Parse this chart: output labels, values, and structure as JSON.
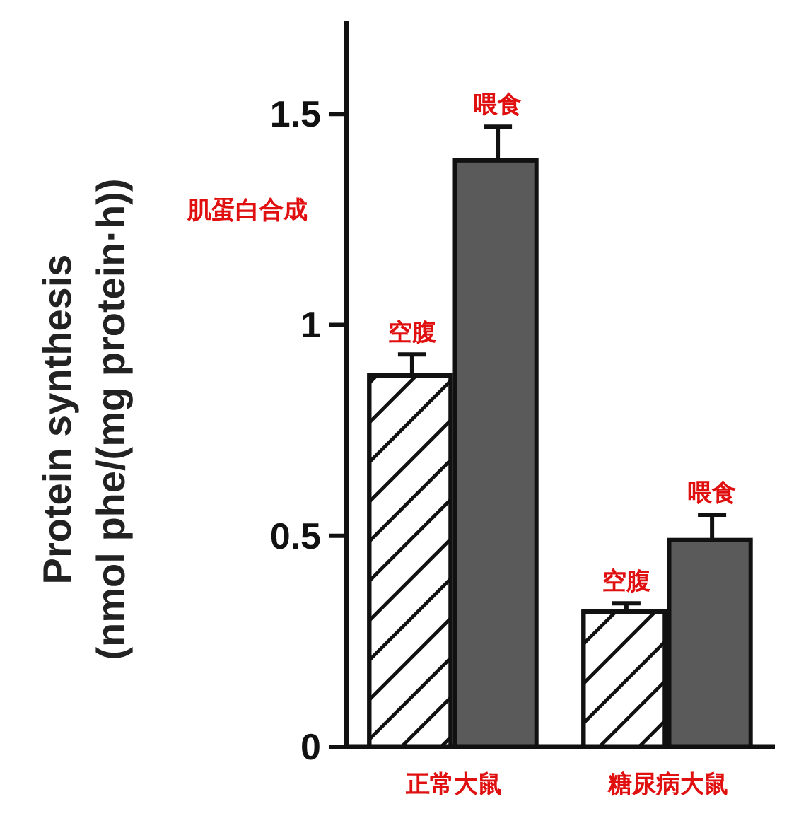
{
  "chart_data": {
    "type": "bar",
    "ylabel": "Protein synthesis\n(nmol phe/(mg protein·h))",
    "categories": [
      "正常大鼠",
      "糖尿病大鼠"
    ],
    "series": [
      {
        "name": "空腹",
        "color": "#ffffff",
        "values": [
          0.88,
          0.32
        ],
        "errors": [
          0.05,
          0.02
        ]
      },
      {
        "name": "喂食",
        "color": "#5a5a5a",
        "values": [
          1.39,
          0.49
        ],
        "errors": [
          0.08,
          0.06
        ]
      }
    ],
    "ylim": [
      0,
      1.72
    ],
    "yticks": [
      0,
      {
        "value": 0.5,
        "label": "0.5"
      },
      1,
      {
        "value": 1.5,
        "label": "1.5"
      }
    ],
    "annotations": [
      "肌蛋白合成"
    ]
  }
}
